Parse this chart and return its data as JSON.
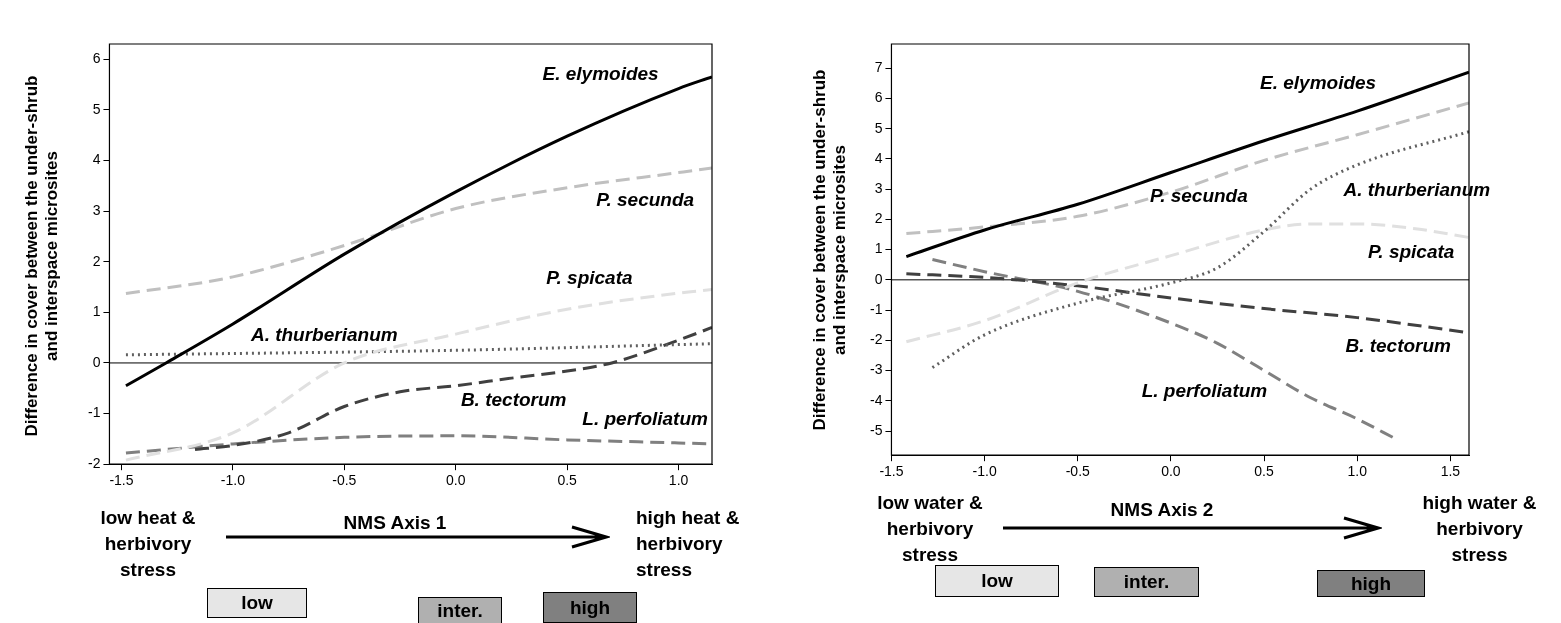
{
  "chart_data": [
    {
      "type": "line",
      "xlabel": "NMS Axis 1",
      "ylabel": "Difference in cover between the under-shrub and interspace microsites",
      "xlim": [
        -1.554,
        1.15
      ],
      "xticks": [
        {
          "value": -1.5,
          "label": "-1.5"
        },
        {
          "value": -1.0,
          "label": "-1.0"
        },
        {
          "value": -0.5,
          "label": "-0.5"
        },
        {
          "value": 0,
          "label": "0.0"
        },
        {
          "value": 0.5,
          "label": "0.5"
        },
        {
          "value": 1.0,
          "label": "1.0"
        }
      ],
      "ylim": [
        -2,
        6.3
      ],
      "yticks": [
        -2,
        -1,
        0,
        1,
        2,
        3,
        4,
        5,
        6
      ],
      "grid": false,
      "legend": false,
      "series": [
        {
          "name": "E. elymoides",
          "color": "#000000",
          "line_style": "solid",
          "x": [
            -1.48,
            -1.3,
            -1.0,
            -0.5,
            0,
            0.5,
            1.0,
            1.15
          ],
          "values": [
            -0.45,
            0,
            0.77,
            2.15,
            3.38,
            4.48,
            5.42,
            5.65
          ]
        },
        {
          "name": "P. secunda",
          "color": "#c0c0c0",
          "line_style": "dashed",
          "x": [
            -1.48,
            -1.0,
            -0.5,
            0,
            0.5,
            1.0,
            1.15
          ],
          "values": [
            1.37,
            1.7,
            2.32,
            3.05,
            3.46,
            3.76,
            3.85
          ]
        },
        {
          "name": "P. spicata",
          "color": "#e0e0e0",
          "line_style": "dashed",
          "x": [
            -1.48,
            -1.0,
            -0.5,
            0,
            0.5,
            1.0,
            1.15
          ],
          "values": [
            -1.92,
            -1.38,
            0,
            0.57,
            1.06,
            1.38,
            1.45
          ]
        },
        {
          "name": "A. thurberianum",
          "color": "#606060",
          "line_style": "dotted",
          "x": [
            -1.48,
            0,
            1.15
          ],
          "values": [
            0.16,
            0.25,
            0.38
          ]
        },
        {
          "name": "B. tectorum",
          "color": "#404040",
          "line_style": "dashed",
          "x": [
            -1.17,
            -1.0,
            -0.75,
            -0.5,
            -0.25,
            0,
            0.25,
            0.5,
            0.7,
            1.0,
            1.15
          ],
          "values": [
            -1.71,
            -1.63,
            -1.38,
            -0.86,
            -0.57,
            -0.45,
            -0.3,
            -0.16,
            0,
            0.45,
            0.7
          ]
        },
        {
          "name": "L. perfoliatum",
          "color": "#808080",
          "line_style": "dashed",
          "x": [
            -1.48,
            -1.0,
            -0.5,
            0,
            0.5,
            1.0,
            1.15
          ],
          "values": [
            -1.78,
            -1.6,
            -1.47,
            -1.44,
            -1.52,
            -1.58,
            -1.6
          ]
        }
      ],
      "ref_lines": [
        {
          "axis": "y",
          "value": 0,
          "color": "#000000"
        }
      ],
      "annotations": [
        "low heat & herbivory stress",
        "high heat & herbivory stress",
        "low",
        "inter.",
        "high"
      ]
    },
    {
      "type": "line",
      "xlabel": "NMS Axis 2",
      "ylabel": "Difference in cover between the under-shrub and interspace microsites",
      "xlim": [
        -1.5,
        1.6
      ],
      "xticks": [
        {
          "value": -1.5,
          "label": "-1.5"
        },
        {
          "value": -1.0,
          "label": "-1.0"
        },
        {
          "value": -0.5,
          "label": "-0.5"
        },
        {
          "value": 0,
          "label": "0.0"
        },
        {
          "value": 0.5,
          "label": "0.5"
        },
        {
          "value": 1.0,
          "label": "1.0"
        },
        {
          "value": 1.5,
          "label": "1.5"
        }
      ],
      "ylim": [
        -5.8,
        7.8
      ],
      "yticks": [
        -5,
        -4,
        -3,
        -2,
        -1,
        0,
        1,
        2,
        3,
        4,
        5,
        6,
        7
      ],
      "grid": false,
      "legend": false,
      "series": [
        {
          "name": "E. elymoides",
          "color": "#000000",
          "line_style": "solid",
          "x": [
            -1.42,
            -1.0,
            -0.5,
            0,
            0.5,
            1.0,
            1.6
          ],
          "values": [
            0.77,
            1.65,
            2.5,
            3.55,
            4.6,
            5.58,
            6.87
          ]
        },
        {
          "name": "P. secunda",
          "color": "#c0c0c0",
          "line_style": "dashed",
          "x": [
            -1.42,
            -1.0,
            -0.5,
            0,
            0.5,
            1.0,
            1.6
          ],
          "values": [
            1.53,
            1.75,
            2.1,
            2.9,
            3.95,
            4.8,
            5.85
          ]
        },
        {
          "name": "A. thurberianum",
          "color": "#606060",
          "line_style": "dotted",
          "x": [
            -1.28,
            -1.0,
            -0.5,
            0,
            0.25,
            0.5,
            0.75,
            1.0,
            1.6
          ],
          "values": [
            -2.9,
            -1.82,
            -0.77,
            -0.1,
            0.4,
            1.6,
            3.0,
            3.8,
            4.9
          ]
        },
        {
          "name": "P. spicata",
          "color": "#e0e0e0",
          "line_style": "dashed",
          "x": [
            -1.42,
            -1.0,
            -0.5,
            0,
            0.5,
            0.75,
            1.0,
            1.3,
            1.6
          ],
          "values": [
            -2.05,
            -1.35,
            -0.1,
            0.8,
            1.65,
            1.85,
            1.85,
            1.7,
            1.4
          ]
        },
        {
          "name": "B. tectorum",
          "color": "#404040",
          "line_style": "dashed",
          "x": [
            -1.42,
            -1.0,
            -0.5,
            0,
            0.5,
            1.0,
            1.6
          ],
          "values": [
            0.2,
            0.08,
            -0.2,
            -0.6,
            -0.95,
            -1.25,
            -1.75
          ]
        },
        {
          "name": "L. perfoliatum",
          "color": "#808080",
          "line_style": "dashed",
          "x": [
            -1.28,
            -1.0,
            -0.5,
            0,
            0.25,
            0.5,
            0.75,
            1.0,
            1.21
          ],
          "values": [
            0.67,
            0.27,
            -0.38,
            -1.43,
            -2.1,
            -3.0,
            -3.9,
            -4.6,
            -5.27
          ]
        }
      ],
      "ref_lines": [
        {
          "axis": "y",
          "value": 0,
          "color": "#000000"
        }
      ],
      "annotations": [
        "low water & herbivory stress",
        "high water & herbivory stress",
        "low",
        "inter.",
        "high"
      ]
    }
  ]
}
